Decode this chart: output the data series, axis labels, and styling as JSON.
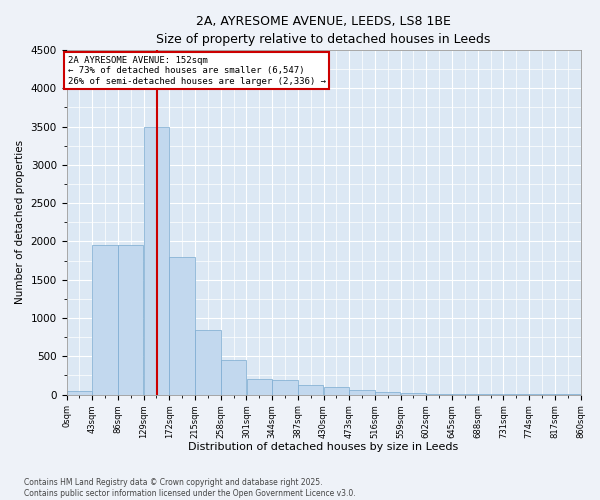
{
  "title": "2A, AYRESOME AVENUE, LEEDS, LS8 1BE",
  "subtitle": "Size of property relative to detached houses in Leeds",
  "xlabel": "Distribution of detached houses by size in Leeds",
  "ylabel": "Number of detached properties",
  "bar_color": "#c2d8ee",
  "bar_edge_color": "#7aaad0",
  "background_color": "#dce8f4",
  "figure_color": "#eef2f8",
  "grid_color": "#ffffff",
  "vline_x": 152,
  "vline_color": "#cc0000",
  "annotation_text": "2A AYRESOME AVENUE: 152sqm\n← 73% of detached houses are smaller (6,547)\n26% of semi-detached houses are larger (2,336) →",
  "annotation_border_color": "#cc0000",
  "bins": [
    0,
    43,
    86,
    129,
    172,
    215,
    258,
    301,
    344,
    387,
    430,
    473,
    516,
    559,
    602,
    645,
    688,
    731,
    774,
    817,
    860
  ],
  "bin_labels": [
    "0sqm",
    "43sqm",
    "86sqm",
    "129sqm",
    "172sqm",
    "215sqm",
    "258sqm",
    "301sqm",
    "344sqm",
    "387sqm",
    "430sqm",
    "473sqm",
    "516sqm",
    "559sqm",
    "602sqm",
    "645sqm",
    "688sqm",
    "731sqm",
    "774sqm",
    "817sqm",
    "860sqm"
  ],
  "counts": [
    45,
    1950,
    1950,
    3500,
    1800,
    850,
    450,
    205,
    185,
    125,
    100,
    60,
    35,
    18,
    10,
    7,
    5,
    4,
    3,
    3
  ],
  "ylim": [
    0,
    4500
  ],
  "yticks": [
    0,
    500,
    1000,
    1500,
    2000,
    2500,
    3000,
    3500,
    4000,
    4500
  ],
  "footer": "Contains HM Land Registry data © Crown copyright and database right 2025.\nContains public sector information licensed under the Open Government Licence v3.0.",
  "figsize": [
    6.0,
    5.0
  ],
  "dpi": 100
}
